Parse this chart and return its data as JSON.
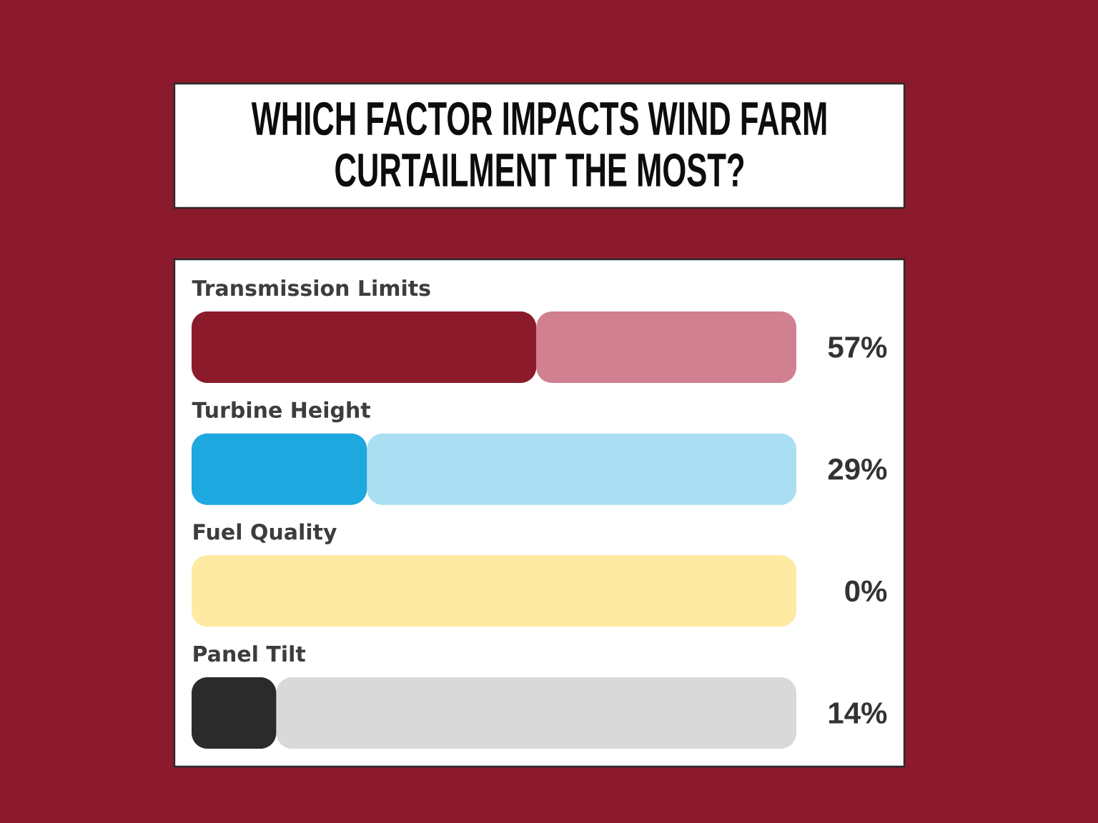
{
  "chart_data": {
    "type": "bar",
    "orientation": "horizontal",
    "stacked": true,
    "title": "WHICH FACTOR IMPACTS WIND FARM CURTAILMENT THE MOST?",
    "categories": [
      "Transmission Limits",
      "Turbine Height",
      "Fuel Quality",
      "Panel Tilt"
    ],
    "series": [
      {
        "colors": [
          "#8b1a2b",
          "#1ea8e0",
          "#fdd131",
          "#2b2b2b"
        ],
        "values": [
          57,
          29,
          0,
          14
        ],
        "value_labels": [
          "57%",
          "29%",
          "0%",
          "14%"
        ]
      },
      {
        "colors": [
          "#d08090",
          "#aadff3",
          "#feeaa2",
          "#d9d9d9"
        ],
        "values": [
          43,
          71,
          100,
          86
        ]
      }
    ],
    "xlim": [
      0,
      100
    ],
    "tick_labels": "y"
  }
}
